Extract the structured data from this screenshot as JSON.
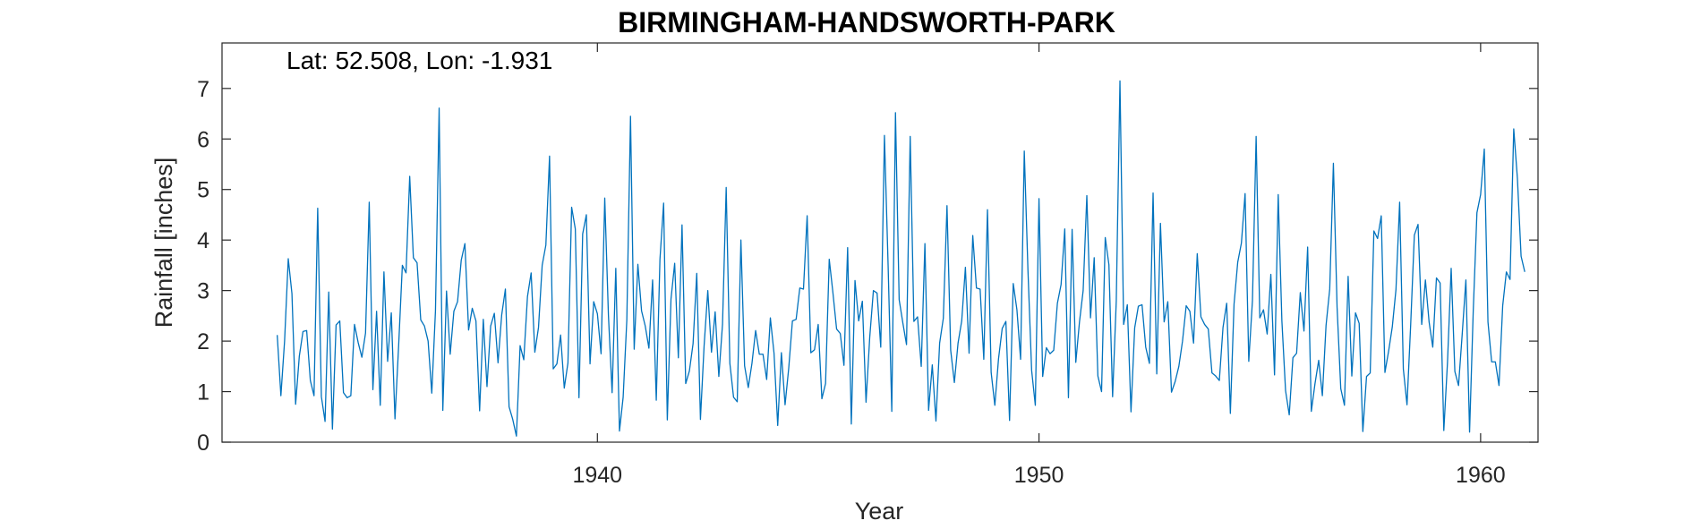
{
  "chart_data": {
    "type": "line",
    "title": "BIRMINGHAM-HANDSWORTH-PARK",
    "annotation": "Lat: 52.508, Lon: -1.931",
    "xlabel": "Year",
    "ylabel": "Rainfall [inches]",
    "xlim": [
      1931.5,
      1961.3
    ],
    "ylim": [
      0,
      7.9
    ],
    "xticks": [
      1940,
      1950,
      1960
    ],
    "yticks": [
      0,
      1,
      2,
      3,
      4,
      5,
      6,
      7
    ],
    "grid": false,
    "line_color": "#0072BD",
    "series": [
      {
        "x_start": 1932.75,
        "x_step_months": 1,
        "values": [
          2.12,
          0.92,
          2.0,
          3.63,
          2.94,
          0.75,
          1.7,
          2.19,
          2.21,
          1.22,
          0.92,
          4.63,
          0.9,
          0.41,
          2.97,
          0.26,
          2.32,
          2.4,
          0.98,
          0.88,
          0.92,
          2.33,
          1.97,
          1.68,
          2.16,
          4.75,
          1.04,
          2.59,
          0.73,
          3.37,
          1.6,
          2.56,
          0.46,
          1.92,
          3.5,
          3.35,
          5.26,
          3.65,
          3.55,
          2.42,
          2.3,
          2.0,
          0.97,
          2.6,
          6.61,
          0.63,
          2.99,
          1.74,
          2.59,
          2.78,
          3.6,
          3.93,
          2.22,
          2.65,
          2.4,
          0.62,
          2.43,
          1.1,
          2.3,
          2.55,
          1.57,
          2.52,
          3.03,
          0.7,
          0.45,
          0.12,
          1.91,
          1.63,
          2.88,
          3.35,
          1.78,
          2.27,
          3.5,
          3.9,
          5.66,
          1.45,
          1.55,
          2.12,
          1.07,
          1.57,
          4.65,
          4.22,
          0.88,
          4.12,
          4.5,
          1.55,
          2.78,
          2.54,
          1.75,
          4.83,
          2.51,
          0.98,
          3.44,
          0.22,
          0.89,
          2.42,
          6.45,
          1.84,
          3.52,
          2.6,
          2.3,
          1.86,
          3.21,
          0.83,
          3.62,
          4.73,
          0.44,
          2.83,
          3.54,
          1.67,
          4.3,
          1.16,
          1.41,
          1.95,
          3.34,
          0.45,
          1.91,
          3.0,
          1.78,
          2.58,
          1.3,
          2.33,
          5.04,
          1.56,
          0.89,
          0.8,
          4.0,
          1.51,
          1.08,
          1.56,
          2.21,
          1.74,
          1.74,
          1.24,
          2.46,
          1.76,
          0.33,
          1.77,
          0.74,
          1.47,
          2.4,
          2.43,
          3.05,
          3.03,
          4.48,
          1.77,
          1.83,
          2.33,
          0.86,
          1.16,
          3.62,
          2.96,
          2.24,
          2.15,
          1.52,
          3.85,
          0.36,
          3.2,
          2.4,
          2.79,
          0.79,
          2.07,
          3.0,
          2.95,
          1.88,
          6.07,
          3.5,
          0.61,
          6.52,
          2.82,
          2.36,
          1.93,
          6.05,
          2.39,
          2.48,
          1.5,
          3.93,
          0.63,
          1.53,
          0.42,
          1.96,
          2.45,
          4.68,
          1.82,
          1.18,
          1.96,
          2.4,
          3.46,
          1.76,
          4.09,
          3.05,
          3.03,
          1.64,
          4.6,
          1.38,
          0.73,
          1.65,
          2.25,
          2.39,
          0.43,
          3.14,
          2.62,
          1.64,
          5.76,
          3.4,
          1.42,
          0.73,
          4.82,
          1.3,
          1.87,
          1.75,
          1.82,
          2.75,
          3.12,
          4.22,
          0.88,
          4.21,
          1.58,
          2.38,
          3.0,
          4.88,
          2.46,
          3.65,
          1.31,
          1.0,
          4.05,
          3.51,
          0.9,
          2.8,
          7.15,
          2.33,
          2.72,
          0.6,
          2.26,
          2.69,
          2.72,
          1.88,
          1.56,
          4.93,
          1.35,
          4.33,
          2.38,
          2.78,
          0.99,
          1.2,
          1.5,
          2.0,
          2.7,
          2.59,
          1.96,
          3.73,
          2.48,
          2.33,
          2.24,
          1.37,
          1.31,
          1.22,
          2.27,
          2.75,
          0.57,
          2.73,
          3.56,
          3.94,
          4.92,
          1.6,
          2.8,
          6.05,
          2.46,
          2.62,
          2.14,
          3.32,
          1.33,
          4.9,
          2.4,
          1.02,
          0.54,
          1.67,
          1.76,
          2.96,
          2.2,
          3.86,
          0.61,
          1.16,
          1.62,
          0.92,
          2.31,
          3.03,
          5.52,
          2.67,
          1.06,
          0.73,
          3.28,
          1.31,
          2.56,
          2.35,
          0.21,
          1.3,
          1.37,
          4.18,
          4.03,
          4.48,
          1.38,
          1.8,
          2.28,
          3.02,
          4.75,
          1.45,
          0.74,
          2.33,
          4.1,
          4.31,
          2.33,
          3.21,
          2.38,
          1.88,
          3.25,
          3.15,
          0.23,
          1.58,
          3.44,
          1.4,
          1.12,
          2.14,
          3.21,
          0.2,
          2.6,
          4.54,
          4.9,
          5.8,
          2.38,
          1.59,
          1.59,
          1.12,
          2.7,
          3.37,
          3.22,
          6.2,
          5.22,
          3.68,
          3.37
        ]
      }
    ]
  }
}
